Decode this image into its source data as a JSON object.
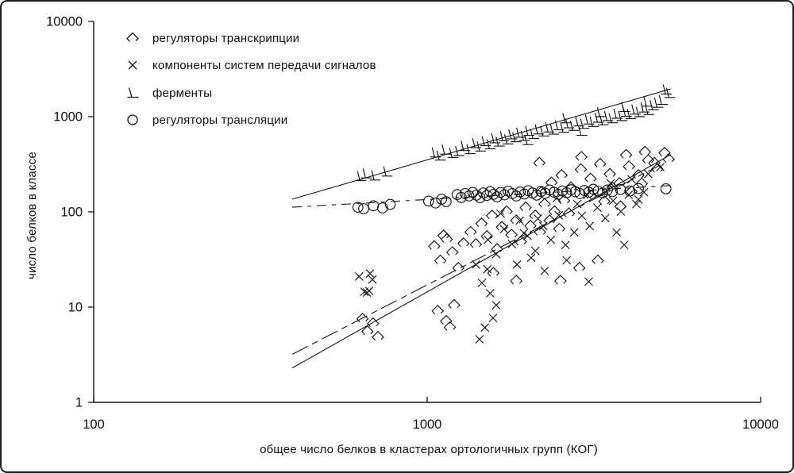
{
  "figure": {
    "legend": {
      "items": [
        {
          "label": "регуляторы транскрипции"
        },
        {
          "label": "компоненты систем передачи сигналов"
        },
        {
          "label": "ферменты"
        },
        {
          "label": "регуляторы трансляции"
        }
      ]
    },
    "axes": {
      "x_label": "общее число белков в кластерах ортологичных групп (КОГ)",
      "y_label": "число белков в классе"
    }
  },
  "chart_data": {
    "type": "scatter",
    "title": "",
    "xlabel": "общее число белков в кластерах ортологичных групп (КОГ)",
    "ylabel": "число белков в классе",
    "x_axis": {
      "scale": "log",
      "range": [
        100,
        10000
      ],
      "ticks": [
        "100",
        "1000",
        "10000"
      ]
    },
    "y_axis": {
      "scale": "log",
      "range": [
        1,
        10000
      ],
      "ticks": [
        "1",
        "10",
        "100",
        "1000",
        "10000"
      ]
    },
    "grid": false,
    "legend_position": "top-left",
    "series": [
      {
        "name": "регуляторы транскрипции",
        "marker": "open-diamond",
        "trendline": {
          "style": "solid",
          "from": [
            394,
            2.3
          ],
          "to": [
            5380,
            400
          ],
          "slope_loglog": 2.0
        },
        "points": [
          [
            640,
            7.6
          ],
          [
            662,
            5.6
          ],
          [
            688,
            6.8
          ],
          [
            712,
            4.9
          ],
          [
            1075,
            9.2
          ],
          [
            1140,
            7.2
          ],
          [
            1205,
            10.6
          ],
          [
            1170,
            6.2
          ],
          [
            1050,
            44
          ],
          [
            1095,
            31
          ],
          [
            1145,
            52
          ],
          [
            1190,
            38
          ],
          [
            1240,
            26
          ],
          [
            1285,
            47
          ],
          [
            1120,
            57
          ],
          [
            1350,
            62
          ],
          [
            1400,
            46
          ],
          [
            1455,
            76
          ],
          [
            1510,
            56
          ],
          [
            1565,
            92
          ],
          [
            1620,
            41
          ],
          [
            1675,
            70
          ],
          [
            1730,
            102
          ],
          [
            1790,
            58
          ],
          [
            1850,
            82
          ],
          [
            1910,
            49
          ],
          [
            1975,
            112
          ],
          [
            2040,
            72
          ],
          [
            2110,
            92
          ],
          [
            2180,
            62
          ],
          [
            2250,
            122
          ],
          [
            2330,
            82
          ],
          [
            2410,
            102
          ],
          [
            2490,
            67
          ],
          [
            2575,
            132
          ],
          [
            2660,
            97
          ],
          [
            1580,
            23
          ],
          [
            1850,
            19
          ],
          [
            2510,
            19
          ],
          [
            2860,
            26
          ],
          [
            3250,
            31
          ],
          [
            2170,
            330
          ],
          [
            2200,
            162
          ],
          [
            2360,
            205
          ],
          [
            2530,
            245
          ],
          [
            2700,
            182
          ],
          [
            2890,
            282
          ],
          [
            3090,
            225
          ],
          [
            3300,
            322
          ],
          [
            3530,
            252
          ],
          [
            3770,
            202
          ],
          [
            4030,
            302
          ],
          [
            4300,
            245
          ],
          [
            4600,
            352
          ],
          [
            4900,
            285
          ],
          [
            5150,
            420
          ],
          [
            3950,
            400
          ],
          [
            4500,
            430
          ],
          [
            3100,
            150
          ],
          [
            3600,
            180
          ],
          [
            2900,
            380
          ],
          [
            3400,
            130
          ],
          [
            3800,
            115
          ],
          [
            4100,
            165
          ],
          [
            4400,
            200
          ],
          [
            4800,
            330
          ],
          [
            5300,
            360
          ]
        ]
      },
      {
        "name": "компоненты систем передачи сигналов",
        "marker": "x-cross",
        "trendline": {
          "style": "dash-dot",
          "from": [
            394,
            3.2
          ],
          "to": [
            5000,
            310
          ],
          "slope_loglog": 1.8
        },
        "points": [
          [
            625,
            21
          ],
          [
            648,
            14.5
          ],
          [
            660,
            14.2
          ],
          [
            670,
            14.8
          ],
          [
            674,
            22.5
          ],
          [
            685,
            19.5
          ],
          [
            1400,
            28
          ],
          [
            1435,
            4.6
          ],
          [
            1460,
            18
          ],
          [
            1490,
            6.1
          ],
          [
            1515,
            25
          ],
          [
            1545,
            14
          ],
          [
            1575,
            7.7
          ],
          [
            1610,
            10.5
          ],
          [
            1520,
            51
          ],
          [
            1610,
            36
          ],
          [
            1700,
            66
          ],
          [
            1795,
            46
          ],
          [
            1895,
            81
          ],
          [
            2000,
            56
          ],
          [
            2110,
            39
          ],
          [
            2230,
            71
          ],
          [
            2350,
            51
          ],
          [
            2480,
            92
          ],
          [
            1660,
            96
          ],
          [
            1860,
            28
          ],
          [
            2050,
            33
          ],
          [
            2250,
            24
          ],
          [
            1950,
            60
          ],
          [
            2150,
            85
          ],
          [
            2620,
            31
          ],
          [
            2760,
            61
          ],
          [
            2910,
            91
          ],
          [
            3070,
            71
          ],
          [
            3240,
            111
          ],
          [
            3420,
            86
          ],
          [
            3610,
            131
          ],
          [
            3810,
            101
          ],
          [
            4020,
            151
          ],
          [
            4240,
            121
          ],
          [
            4470,
            161
          ],
          [
            3020,
            151
          ],
          [
            3430,
            161
          ],
          [
            2820,
            121
          ],
          [
            3700,
            61
          ],
          [
            3050,
            18.5
          ],
          [
            2600,
            45
          ],
          [
            3900,
            45
          ],
          [
            4100,
            220
          ],
          [
            4600,
            250
          ],
          [
            5000,
            295
          ],
          [
            4300,
            135
          ],
          [
            3550,
            200
          ],
          [
            2450,
            140
          ]
        ]
      },
      {
        "name": "ферменты",
        "marker": "open-angle",
        "trendline": {
          "style": "solid",
          "from": [
            394,
            136
          ],
          "to": [
            5380,
            1960
          ],
          "slope_loglog": 1.0
        },
        "points": [
          [
            630,
            235
          ],
          [
            655,
            250
          ],
          [
            695,
            238
          ],
          [
            755,
            262
          ],
          [
            1055,
            415
          ],
          [
            1090,
            385
          ],
          [
            1130,
            445
          ],
          [
            1190,
            410
          ],
          [
            1240,
            430
          ],
          [
            1290,
            485
          ],
          [
            1340,
            450
          ],
          [
            1395,
            520
          ],
          [
            1440,
            480
          ],
          [
            1490,
            545
          ],
          [
            1540,
            505
          ],
          [
            1590,
            585
          ],
          [
            1640,
            540
          ],
          [
            1690,
            615
          ],
          [
            1740,
            570
          ],
          [
            1790,
            645
          ],
          [
            1840,
            600
          ],
          [
            1890,
            670
          ],
          [
            1950,
            620
          ],
          [
            2010,
            700
          ],
          [
            2080,
            650
          ],
          [
            2150,
            725
          ],
          [
            2230,
            690
          ],
          [
            2310,
            760
          ],
          [
            2390,
            720
          ],
          [
            2470,
            800
          ],
          [
            2560,
            755
          ],
          [
            2650,
            840
          ],
          [
            2740,
            790
          ],
          [
            2840,
            880
          ],
          [
            2940,
            830
          ],
          [
            3040,
            920
          ],
          [
            3140,
            870
          ],
          [
            3250,
            960
          ],
          [
            3360,
            905
          ],
          [
            3470,
            1000
          ],
          [
            3580,
            950
          ],
          [
            3700,
            1060
          ],
          [
            3820,
            1000
          ],
          [
            3940,
            1110
          ],
          [
            4060,
            1050
          ],
          [
            4190,
            1170
          ],
          [
            4320,
            1100
          ],
          [
            4460,
            1230
          ],
          [
            4600,
            1160
          ],
          [
            4750,
            1300
          ],
          [
            4900,
            1380
          ],
          [
            5060,
            1480
          ],
          [
            5200,
            1900
          ],
          [
            5320,
            1750
          ],
          [
            4550,
            1420
          ],
          [
            3900,
            1250
          ],
          [
            3300,
            1100
          ],
          [
            2600,
            950
          ],
          [
            2000,
            560
          ],
          [
            2900,
            700
          ]
        ]
      },
      {
        "name": "регуляторы трансляции",
        "marker": "open-circle",
        "trendline": {
          "style": "dashed",
          "from": [
            394,
            112
          ],
          "to": [
            5500,
            190
          ],
          "slope_loglog": 0.2
        },
        "points": [
          [
            620,
            112
          ],
          [
            645,
            108
          ],
          [
            690,
            116
          ],
          [
            735,
            110
          ],
          [
            775,
            120
          ],
          [
            1010,
            130
          ],
          [
            1060,
            124
          ],
          [
            1105,
            136
          ],
          [
            1140,
            128
          ],
          [
            1230,
            152
          ],
          [
            1265,
            142
          ],
          [
            1300,
            156
          ],
          [
            1335,
            147
          ],
          [
            1370,
            160
          ],
          [
            1405,
            150
          ],
          [
            1440,
            141
          ],
          [
            1475,
            158
          ],
          [
            1510,
            149
          ],
          [
            1545,
            163
          ],
          [
            1580,
            153
          ],
          [
            1620,
            144
          ],
          [
            1660,
            160
          ],
          [
            1705,
            151
          ],
          [
            1750,
            165
          ],
          [
            1800,
            156
          ],
          [
            1850,
            147
          ],
          [
            1900,
            162
          ],
          [
            1955,
            154
          ],
          [
            2010,
            167
          ],
          [
            2070,
            158
          ],
          [
            2130,
            150
          ],
          [
            2195,
            164
          ],
          [
            2260,
            157
          ],
          [
            2330,
            170
          ],
          [
            2400,
            161
          ],
          [
            2470,
            153
          ],
          [
            2545,
            166
          ],
          [
            2620,
            159
          ],
          [
            2700,
            171
          ],
          [
            2780,
            163
          ],
          [
            2870,
            156
          ],
          [
            2960,
            168
          ],
          [
            3050,
            161
          ],
          [
            3150,
            173
          ],
          [
            3250,
            165
          ],
          [
            3360,
            158
          ],
          [
            3470,
            170
          ],
          [
            3590,
            163
          ],
          [
            3800,
            172
          ],
          [
            4050,
            166
          ],
          [
            4300,
            176
          ],
          [
            5200,
            175
          ]
        ]
      }
    ]
  }
}
